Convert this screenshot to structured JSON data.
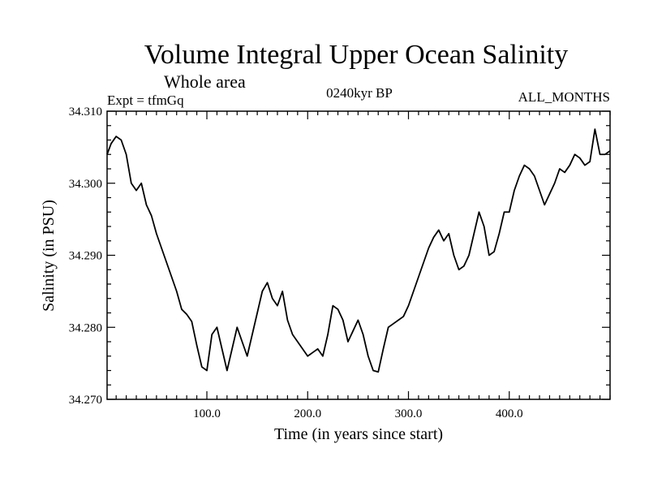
{
  "chart_data": {
    "type": "line",
    "title": "Volume Integral Upper Ocean Salinity",
    "subtitle": "Whole area",
    "left_note": "Expt = tfmGq",
    "center_note": "0240kyr BP",
    "right_note": "ALL_MONTHS",
    "xlabel": "Time (in years since start)",
    "ylabel": "Salinity (in PSU)",
    "xlim": [
      1,
      500
    ],
    "ylim": [
      34.27,
      34.31
    ],
    "x_ticks": [
      100,
      200,
      300,
      400
    ],
    "x_tick_labels": [
      "100.0",
      "200.0",
      "300.0",
      "400.0"
    ],
    "y_ticks": [
      34.27,
      34.28,
      34.29,
      34.3,
      34.31
    ],
    "y_tick_labels": [
      "34.270",
      "34.280",
      "34.290",
      "34.300",
      "34.310"
    ],
    "grid": false,
    "line_color": "#000000",
    "series": [
      {
        "x": [
          1,
          5,
          10,
          15,
          20,
          25,
          30,
          35,
          40,
          45,
          50,
          55,
          60,
          65,
          70,
          75,
          80,
          85,
          90,
          95,
          100,
          105,
          110,
          115,
          120,
          125,
          130,
          135,
          140,
          145,
          150,
          155,
          160,
          165,
          170,
          175,
          180,
          185,
          190,
          195,
          200,
          205,
          210,
          215,
          220,
          225,
          230,
          235,
          240,
          245,
          250,
          255,
          260,
          265,
          270,
          275,
          280,
          285,
          290,
          295,
          300,
          305,
          310,
          315,
          320,
          325,
          330,
          335,
          340,
          345,
          350,
          355,
          360,
          365,
          370,
          375,
          380,
          385,
          390,
          395,
          400,
          405,
          410,
          415,
          420,
          425,
          430,
          435,
          440,
          445,
          450,
          455,
          460,
          465,
          470,
          475,
          480,
          485,
          490,
          495,
          500
        ],
        "values": [
          34.304,
          34.3055,
          34.3065,
          34.306,
          34.304,
          34.3,
          34.299,
          34.3,
          34.297,
          34.2955,
          34.293,
          34.291,
          34.289,
          34.287,
          34.285,
          34.2825,
          34.2818,
          34.2808,
          34.2775,
          34.2745,
          34.274,
          34.279,
          34.28,
          34.277,
          34.274,
          34.277,
          34.28,
          34.278,
          34.276,
          34.279,
          34.282,
          34.285,
          34.2862,
          34.284,
          34.283,
          34.285,
          34.281,
          34.279,
          34.278,
          34.277,
          34.276,
          34.2765,
          34.277,
          34.276,
          34.279,
          34.283,
          34.2825,
          34.281,
          34.278,
          34.2795,
          34.281,
          34.279,
          34.276,
          34.274,
          34.2738,
          34.277,
          34.28,
          34.2805,
          34.281,
          34.2815,
          34.283,
          34.285,
          34.287,
          34.289,
          34.291,
          34.2925,
          34.2935,
          34.292,
          34.293,
          34.29,
          34.288,
          34.2885,
          34.29,
          34.293,
          34.296,
          34.294,
          34.29,
          34.2905,
          34.293,
          34.296,
          34.296,
          34.299,
          34.301,
          34.3025,
          34.302,
          34.301,
          34.299,
          34.297,
          34.2985,
          34.3,
          34.302,
          34.3015,
          34.3025,
          34.304,
          34.3035,
          34.3025,
          34.303,
          34.3075,
          34.304,
          34.304,
          34.3045
        ]
      }
    ]
  }
}
